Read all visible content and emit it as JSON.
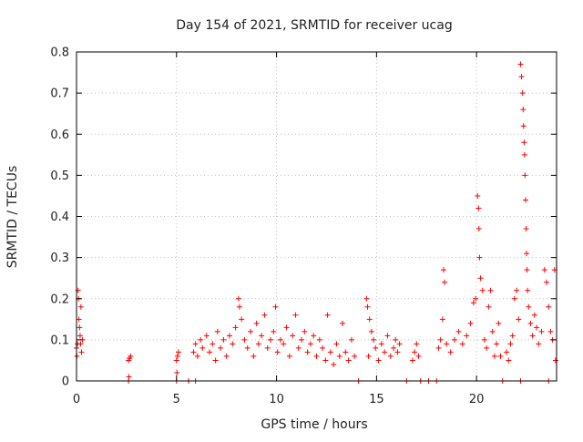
{
  "chart_data": {
    "type": "scatter",
    "title": "Day 154 of 2021, SRMTID for receiver ucag",
    "xlabel": "GPS time / hours",
    "ylabel": "SRMTID / TECUs",
    "xlim": [
      0,
      24
    ],
    "ylim": [
      0,
      0.8
    ],
    "xticks": [
      0,
      5,
      10,
      15,
      20
    ],
    "xtick_labels": [
      "0",
      "5",
      "10",
      "15",
      "20"
    ],
    "yticks": [
      0,
      0.1,
      0.2,
      0.3,
      0.4,
      0.5,
      0.6,
      0.7,
      0.8
    ],
    "ytick_labels": [
      "0",
      "0.1",
      "0.2",
      "0.3",
      "0.4",
      "0.5",
      "0.6",
      "0.7",
      "0.8"
    ],
    "grid": true,
    "marker": "plus",
    "color": "#ff0000",
    "series": [
      {
        "name": "SRMTID",
        "points": [
          [
            0.0,
            0.08
          ],
          [
            0.05,
            0.09
          ],
          [
            0.08,
            0.22
          ],
          [
            0.1,
            0.2
          ],
          [
            0.12,
            0.15
          ],
          [
            0.15,
            0.13
          ],
          [
            0.18,
            0.11
          ],
          [
            0.2,
            0.09
          ],
          [
            0.25,
            0.07
          ],
          [
            0.3,
            0.1
          ],
          [
            0.02,
            0.06
          ],
          [
            0.22,
            0.18
          ],
          [
            2.6,
            0.05
          ],
          [
            2.65,
            0.055
          ],
          [
            2.7,
            0.06
          ],
          [
            2.62,
            0.01
          ],
          [
            5.0,
            0.05
          ],
          [
            5.05,
            0.06
          ],
          [
            5.1,
            0.07
          ],
          [
            5.02,
            0.02
          ],
          [
            5.85,
            0.07
          ],
          [
            5.95,
            0.09
          ],
          [
            6.05,
            0.06
          ],
          [
            6.2,
            0.1
          ],
          [
            6.3,
            0.08
          ],
          [
            6.5,
            0.11
          ],
          [
            6.65,
            0.07
          ],
          [
            6.8,
            0.09
          ],
          [
            6.95,
            0.05
          ],
          [
            7.05,
            0.12
          ],
          [
            7.2,
            0.08
          ],
          [
            7.35,
            0.1
          ],
          [
            7.5,
            0.06
          ],
          [
            7.65,
            0.11
          ],
          [
            7.8,
            0.09
          ],
          [
            7.95,
            0.13
          ],
          [
            8.1,
            0.2
          ],
          [
            8.15,
            0.18
          ],
          [
            8.25,
            0.15
          ],
          [
            8.4,
            0.1
          ],
          [
            8.55,
            0.08
          ],
          [
            8.7,
            0.12
          ],
          [
            8.85,
            0.06
          ],
          [
            9.0,
            0.14
          ],
          [
            9.1,
            0.09
          ],
          [
            9.25,
            0.11
          ],
          [
            9.4,
            0.16
          ],
          [
            9.55,
            0.08
          ],
          [
            9.7,
            0.1
          ],
          [
            9.85,
            0.12
          ],
          [
            9.95,
            0.18
          ],
          [
            10.05,
            0.07
          ],
          [
            10.2,
            0.1
          ],
          [
            10.35,
            0.09
          ],
          [
            10.5,
            0.13
          ],
          [
            10.65,
            0.06
          ],
          [
            10.8,
            0.11
          ],
          [
            10.95,
            0.16
          ],
          [
            11.1,
            0.08
          ],
          [
            11.25,
            0.1
          ],
          [
            11.4,
            0.12
          ],
          [
            11.55,
            0.07
          ],
          [
            11.7,
            0.09
          ],
          [
            11.85,
            0.11
          ],
          [
            12.0,
            0.06
          ],
          [
            12.15,
            0.1
          ],
          [
            12.3,
            0.08
          ],
          [
            12.45,
            0.05
          ],
          [
            12.55,
            0.16
          ],
          [
            12.7,
            0.07
          ],
          [
            12.85,
            0.04
          ],
          [
            13.0,
            0.09
          ],
          [
            13.15,
            0.06
          ],
          [
            13.3,
            0.14
          ],
          [
            13.45,
            0.07
          ],
          [
            13.6,
            0.05
          ],
          [
            13.75,
            0.1
          ],
          [
            13.9,
            0.06
          ],
          [
            14.5,
            0.2
          ],
          [
            14.55,
            0.18
          ],
          [
            14.65,
            0.15
          ],
          [
            14.75,
            0.12
          ],
          [
            14.85,
            0.1
          ],
          [
            14.6,
            0.06
          ],
          [
            14.95,
            0.08
          ],
          [
            15.1,
            0.05
          ],
          [
            15.25,
            0.09
          ],
          [
            15.4,
            0.07
          ],
          [
            15.55,
            0.11
          ],
          [
            15.7,
            0.06
          ],
          [
            15.85,
            0.08
          ],
          [
            15.95,
            0.1
          ],
          [
            16.05,
            0.07
          ],
          [
            16.15,
            0.09
          ],
          [
            16.8,
            0.05
          ],
          [
            16.9,
            0.07
          ],
          [
            17.0,
            0.09
          ],
          [
            17.1,
            0.06
          ],
          [
            18.1,
            0.08
          ],
          [
            18.2,
            0.1
          ],
          [
            18.3,
            0.15
          ],
          [
            18.35,
            0.27
          ],
          [
            18.4,
            0.24
          ],
          [
            18.5,
            0.09
          ],
          [
            18.7,
            0.07
          ],
          [
            18.9,
            0.1
          ],
          [
            19.1,
            0.12
          ],
          [
            19.3,
            0.09
          ],
          [
            19.5,
            0.11
          ],
          [
            19.7,
            0.14
          ],
          [
            19.85,
            0.19
          ],
          [
            19.95,
            0.2
          ],
          [
            20.05,
            0.45
          ],
          [
            20.1,
            0.42
          ],
          [
            20.12,
            0.37
          ],
          [
            20.15,
            0.3
          ],
          [
            20.2,
            0.25
          ],
          [
            20.3,
            0.22
          ],
          [
            20.4,
            0.1
          ],
          [
            20.5,
            0.08
          ],
          [
            20.6,
            0.18
          ],
          [
            20.7,
            0.22
          ],
          [
            20.8,
            0.12
          ],
          [
            20.9,
            0.06
          ],
          [
            21.0,
            0.09
          ],
          [
            21.1,
            0.14
          ],
          [
            21.2,
            0.06
          ],
          [
            21.5,
            0.07
          ],
          [
            21.6,
            0.05
          ],
          [
            21.7,
            0.09
          ],
          [
            21.8,
            0.11
          ],
          [
            21.9,
            0.2
          ],
          [
            22.0,
            0.22
          ],
          [
            22.1,
            0.15
          ],
          [
            22.2,
            0.77
          ],
          [
            22.25,
            0.74
          ],
          [
            22.3,
            0.7
          ],
          [
            22.33,
            0.66
          ],
          [
            22.35,
            0.62
          ],
          [
            22.38,
            0.58
          ],
          [
            22.4,
            0.55
          ],
          [
            22.42,
            0.5
          ],
          [
            22.45,
            0.44
          ],
          [
            22.48,
            0.37
          ],
          [
            22.5,
            0.31
          ],
          [
            22.52,
            0.27
          ],
          [
            22.55,
            0.22
          ],
          [
            22.6,
            0.18
          ],
          [
            22.7,
            0.14
          ],
          [
            22.8,
            0.11
          ],
          [
            22.9,
            0.16
          ],
          [
            23.0,
            0.13
          ],
          [
            23.1,
            0.09
          ],
          [
            23.25,
            0.12
          ],
          [
            23.4,
            0.27
          ],
          [
            23.5,
            0.24
          ],
          [
            23.6,
            0.18
          ],
          [
            23.7,
            0.12
          ],
          [
            23.8,
            0.1
          ],
          [
            23.9,
            0.27
          ],
          [
            23.95,
            0.05
          ]
        ],
        "zero_points_x": [
          2.6,
          5.0,
          5.6,
          5.95,
          14.1,
          16.5,
          17.2,
          17.6,
          18.0,
          21.3,
          22.2,
          23.6
        ]
      }
    ]
  }
}
